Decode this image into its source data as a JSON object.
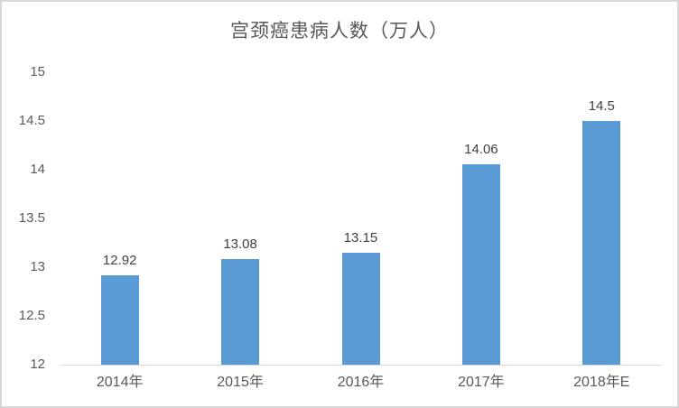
{
  "chart_data": {
    "type": "bar",
    "title": "宫颈癌患病人数（万人）",
    "categories": [
      "2014年",
      "2015年",
      "2016年",
      "2017年",
      "2018年E"
    ],
    "values": [
      12.92,
      13.08,
      13.15,
      14.06,
      14.5
    ],
    "data_labels": [
      "12.92",
      "13.08",
      "13.15",
      "14.06",
      "14.5"
    ],
    "xlabel": "",
    "ylabel": "",
    "ylim": [
      12,
      15
    ],
    "ytick_step": 0.5,
    "yticks": [
      "12",
      "12.5",
      "13",
      "13.5",
      "14",
      "14.5",
      "15"
    ],
    "grid": "off",
    "legend": "none",
    "bar_color": "#5B9BD5",
    "axis_line_color": "#D9D9D9",
    "tick_text_color": "#595959",
    "data_label_color": "#404040",
    "frame_border_color": "#D6D6D6",
    "background_color": "#FFFFFF"
  }
}
